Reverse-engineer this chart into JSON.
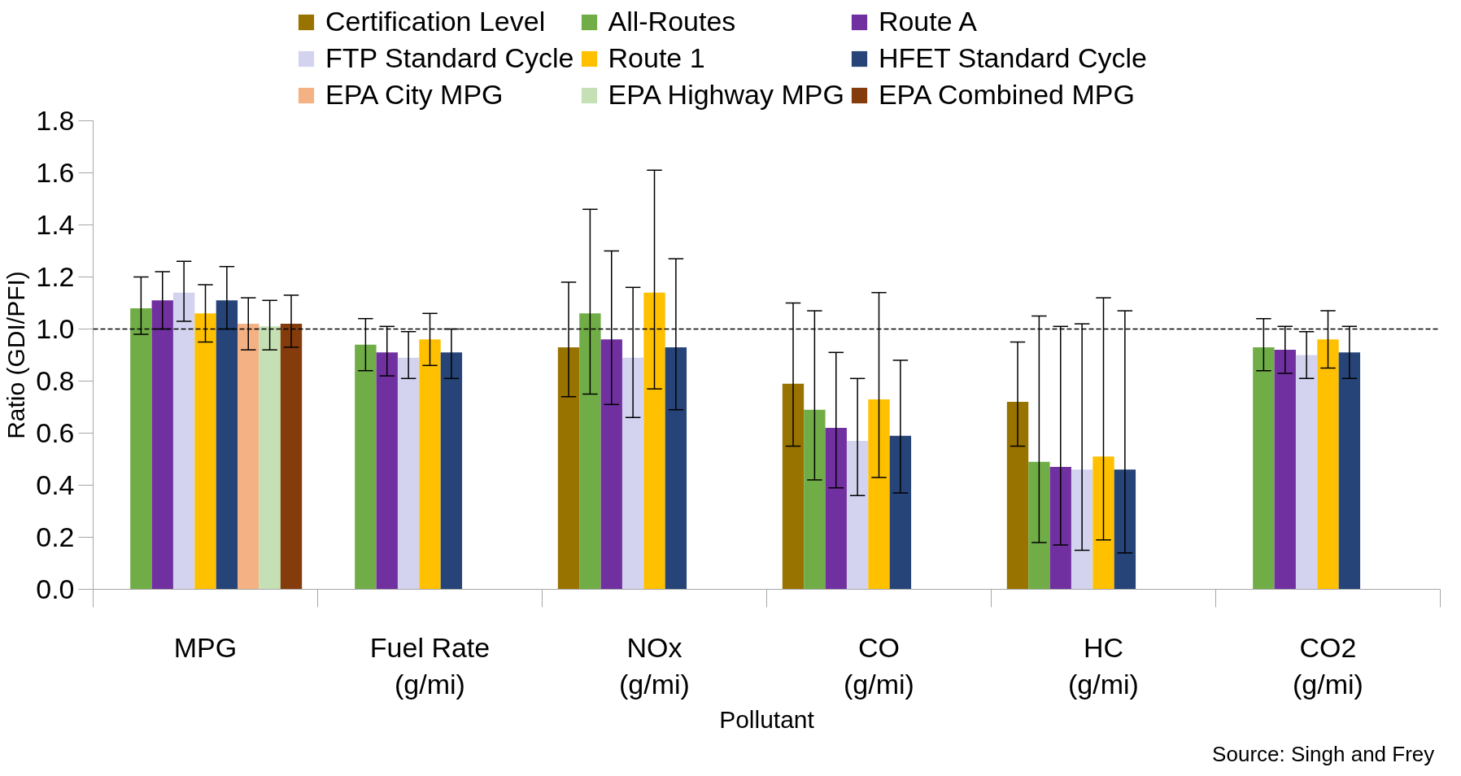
{
  "chart_data": {
    "type": "bar",
    "xlabel": "Pollutant",
    "ylabel": "Ratio (GDI/PFI)",
    "categories": [
      "MPG",
      "Fuel Rate\n(g/mi)",
      "NOx\n(g/mi)",
      "CO\n(g/mi)",
      "HC\n(g/mi)",
      "CO2\n(g/mi)"
    ],
    "series": [
      {
        "name": "Certification Level",
        "color": "#997300",
        "values": [
          null,
          null,
          0.93,
          0.79,
          0.72,
          null
        ],
        "errors": [
          null,
          null,
          [
            0.74,
            1.18
          ],
          [
            0.55,
            1.1
          ],
          [
            0.55,
            0.95
          ],
          null
        ]
      },
      {
        "name": "All-Routes",
        "color": "#70ad47",
        "values": [
          1.08,
          0.94,
          1.06,
          0.69,
          0.49,
          0.93
        ],
        "errors": [
          [
            0.98,
            1.2
          ],
          [
            0.84,
            1.04
          ],
          [
            0.75,
            1.46
          ],
          [
            0.42,
            1.07
          ],
          [
            0.18,
            1.05
          ],
          [
            0.84,
            1.04
          ]
        ]
      },
      {
        "name": "Route A",
        "color": "#7030a0",
        "values": [
          1.11,
          0.91,
          0.96,
          0.62,
          0.47,
          0.92
        ],
        "errors": [
          [
            1.0,
            1.22
          ],
          [
            0.82,
            1.01
          ],
          [
            0.71,
            1.3
          ],
          [
            0.39,
            0.91
          ],
          [
            0.17,
            1.01
          ],
          [
            0.83,
            1.01
          ]
        ]
      },
      {
        "name": "FTP Standard Cycle",
        "color": "#d3d3f0",
        "values": [
          1.14,
          0.89,
          0.89,
          0.57,
          0.46,
          0.9
        ],
        "errors": [
          [
            1.03,
            1.26
          ],
          [
            0.81,
            0.99
          ],
          [
            0.66,
            1.16
          ],
          [
            0.36,
            0.81
          ],
          [
            0.15,
            1.02
          ],
          [
            0.81,
            0.99
          ]
        ]
      },
      {
        "name": "Route 1",
        "color": "#ffc000",
        "values": [
          1.06,
          0.96,
          1.14,
          0.73,
          0.51,
          0.96
        ],
        "errors": [
          [
            0.95,
            1.17
          ],
          [
            0.86,
            1.06
          ],
          [
            0.77,
            1.61
          ],
          [
            0.43,
            1.14
          ],
          [
            0.19,
            1.12
          ],
          [
            0.85,
            1.07
          ]
        ]
      },
      {
        "name": "HFET Standard Cycle",
        "color": "#264478",
        "values": [
          1.11,
          0.91,
          0.93,
          0.59,
          0.46,
          0.91
        ],
        "errors": [
          [
            1.0,
            1.24
          ],
          [
            0.81,
            1.0
          ],
          [
            0.69,
            1.27
          ],
          [
            0.37,
            0.88
          ],
          [
            0.14,
            1.07
          ],
          [
            0.81,
            1.01
          ]
        ]
      },
      {
        "name": "EPA City MPG",
        "color": "#f4b183",
        "values": [
          1.02,
          null,
          null,
          null,
          null,
          null
        ],
        "errors": [
          [
            0.92,
            1.12
          ],
          null,
          null,
          null,
          null,
          null
        ]
      },
      {
        "name": "EPA Highway MPG",
        "color": "#c5e0b4",
        "values": [
          1.01,
          null,
          null,
          null,
          null,
          null
        ],
        "errors": [
          [
            0.92,
            1.11
          ],
          null,
          null,
          null,
          null,
          null
        ]
      },
      {
        "name": "EPA Combined MPG",
        "color": "#843c0c",
        "values": [
          1.02,
          null,
          null,
          null,
          null,
          null
        ],
        "errors": [
          [
            0.93,
            1.13
          ],
          null,
          null,
          null,
          null,
          null
        ]
      }
    ],
    "ylim": [
      0,
      1.8
    ],
    "yticks": [
      {
        "value": 0,
        "label": "0.0"
      },
      {
        "value": 0.2,
        "label": "0.2"
      },
      {
        "value": 0.4,
        "label": "0.4"
      },
      {
        "value": 0.6,
        "label": "0.6"
      },
      {
        "value": 0.8,
        "label": "0.8"
      },
      {
        "value": 1.0,
        "label": "1.0"
      },
      {
        "value": 1.2,
        "label": "1.2"
      },
      {
        "value": 1.4,
        "label": "1.4"
      },
      {
        "value": 1.6,
        "label": "1.6"
      },
      {
        "value": 1.8,
        "label": "1.8"
      }
    ],
    "ref_lines": [
      {
        "axis": "y",
        "value": 1.0,
        "color": "#000000",
        "line_style": "dashed"
      }
    ],
    "legend": "top",
    "annotations": [
      "Source:  Singh and Frey"
    ]
  }
}
